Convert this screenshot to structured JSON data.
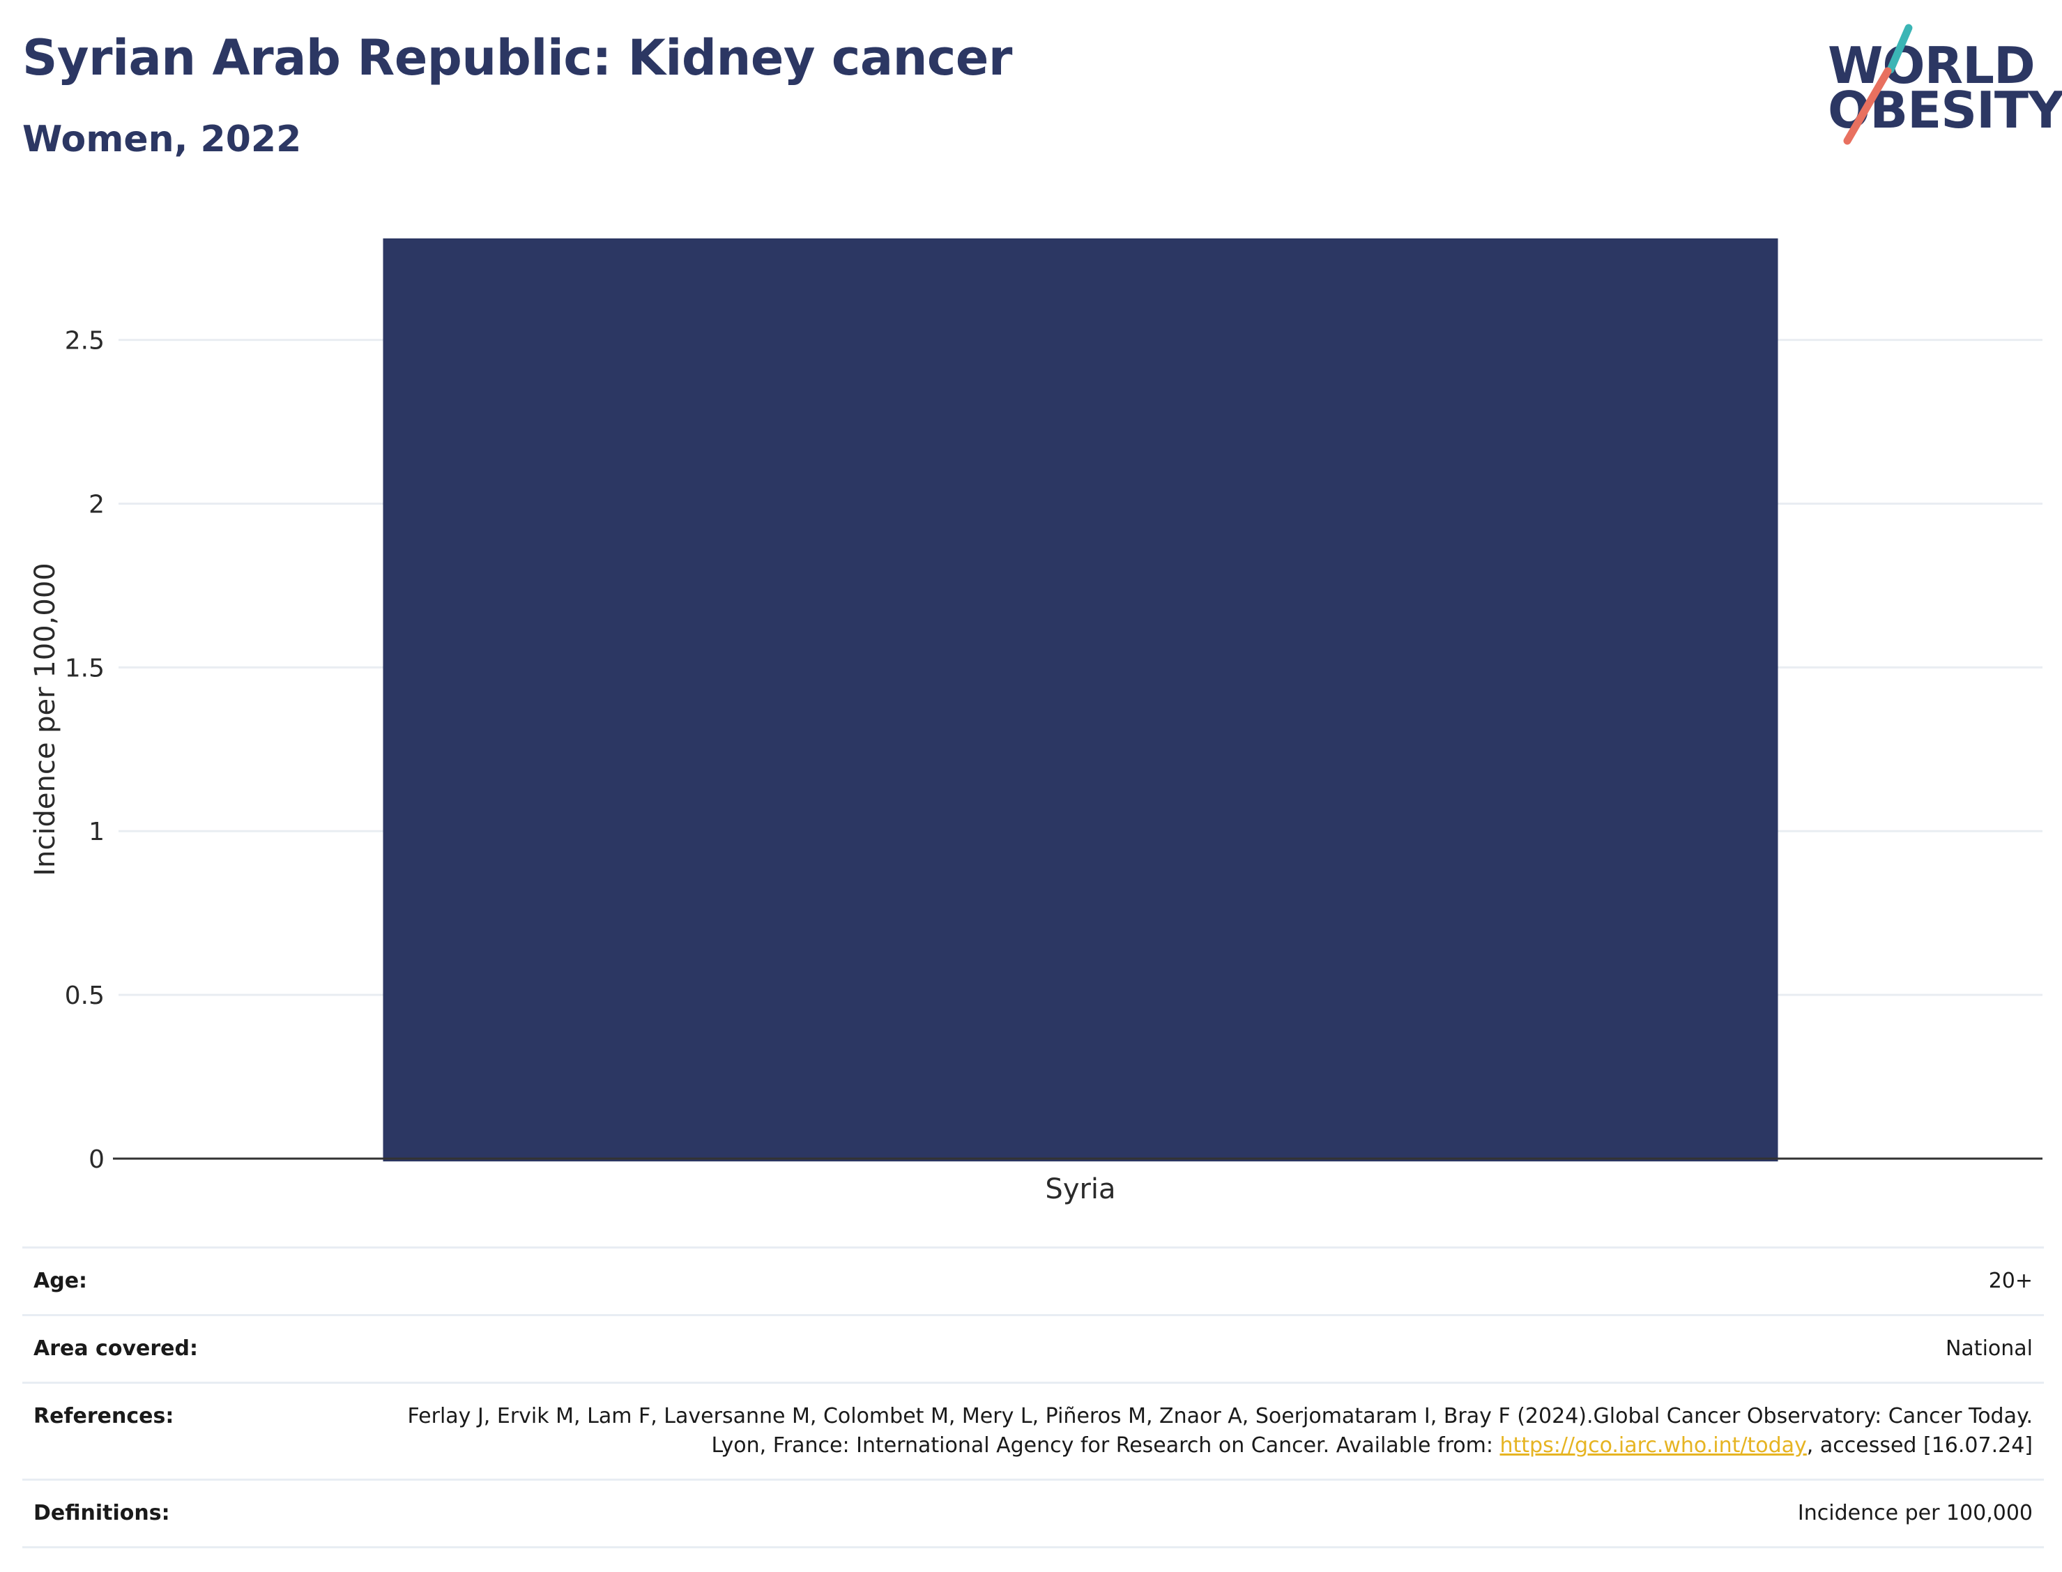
{
  "header": {
    "title": "Syrian Arab Republic: Kidney cancer",
    "subtitle": "Women, 2022"
  },
  "logo": {
    "line1": "WORLD",
    "line2": "OBESITY",
    "accent_teal": "#3bb5b5",
    "accent_coral": "#e8705f"
  },
  "chart_data": {
    "type": "bar",
    "categories": [
      "Syria"
    ],
    "values": [
      2.81
    ],
    "title": "Syrian Arab Republic: Kidney cancer",
    "subtitle": "Women, 2022",
    "xlabel": "",
    "ylabel": "Incidence per 100,000",
    "ylim": [
      0,
      2.81
    ],
    "yticks": [
      0,
      0.5,
      1,
      1.5,
      2,
      2.5
    ],
    "ytick_labels": [
      "0",
      "0.5",
      "1",
      "1.5",
      "2",
      "2.5"
    ],
    "grid": true,
    "legend": "none",
    "bar_color": "#2c3763"
  },
  "info": {
    "rows": [
      {
        "label": "Age:",
        "value": "20+"
      },
      {
        "label": "Area covered:",
        "value": "National"
      },
      {
        "label": "References:",
        "value_before": "Ferlay J, Ervik M, Lam F, Laversanne M, Colombet M, Mery L, Piñeros M, Znaor A, Soerjomataram I, Bray F (2024).Global Cancer Observatory: Cancer Today. Lyon, France: International Agency for Research on Cancer. Available from: ",
        "link": "https://gco.iarc.who.int/today",
        "value_after": ", accessed [16.07.24]"
      },
      {
        "label": "Definitions:",
        "value": "Incidence per 100,000"
      }
    ]
  }
}
